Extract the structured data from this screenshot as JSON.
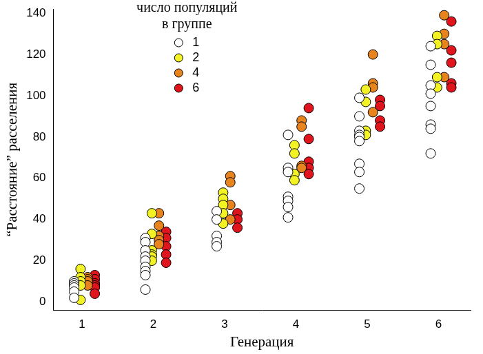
{
  "chart_data": {
    "type": "scatter",
    "x_label": "Генерация",
    "y_label": "“Расстояние” расселения",
    "legend_title": [
      "число популяций",
      "в группе"
    ],
    "legend": "top",
    "grid": false,
    "marker": "circle",
    "xlim": [
      0.6,
      6.45
    ],
    "xticks": [
      1,
      2,
      3,
      4,
      5,
      6
    ],
    "ylim": [
      -4,
      142
    ],
    "yticks": [
      0,
      20,
      40,
      60,
      80,
      100,
      120,
      140
    ],
    "series": [
      {
        "name": "1",
        "color": "#ffffff",
        "x": [
          0.89,
          0.89,
          0.89,
          0.89,
          0.89,
          0.89,
          1.89,
          1.89,
          1.89,
          1.89,
          1.89,
          1.89,
          1.89,
          1.89,
          1.89,
          2.89,
          2.89,
          2.89,
          2.89,
          2.89,
          3.89,
          3.89,
          3.89,
          3.89,
          3.89,
          3.89,
          3.89,
          4.89,
          4.89,
          4.89,
          4.89,
          4.89,
          4.89,
          4.89,
          4.89,
          4.89,
          5.89,
          5.89,
          5.89,
          5.89,
          5.89,
          5.89,
          5.89,
          5.89
        ],
        "values": [
          10,
          9,
          8,
          7,
          5,
          2,
          31,
          29,
          25,
          22,
          20,
          17,
          15,
          13,
          6,
          44,
          40,
          32,
          29,
          27,
          81,
          65,
          63,
          51,
          49,
          46,
          41,
          99,
          90,
          83,
          81,
          80,
          78,
          67,
          63,
          55,
          124,
          115,
          105,
          101,
          95,
          86,
          84,
          72
        ]
      },
      {
        "name": "2",
        "color": "#f2f224",
        "x": [
          0.98,
          0.98,
          0.98,
          0.98,
          0.98,
          1.98,
          1.98,
          1.98,
          1.98,
          1.98,
          1.98,
          2.98,
          2.98,
          2.98,
          2.98,
          2.98,
          3.98,
          3.98,
          3.98,
          3.98,
          4.98,
          4.98,
          4.98,
          4.98,
          5.98,
          5.98,
          5.98,
          5.98
        ],
        "values": [
          16,
          12,
          10,
          8,
          1,
          43,
          33,
          25,
          23,
          22,
          20,
          53,
          50,
          47,
          43,
          38,
          76,
          72,
          62,
          59,
          103,
          97,
          83,
          81,
          129,
          125,
          109,
          104
        ]
      },
      {
        "name": "4",
        "color": "#e8841e",
        "x": [
          1.08,
          1.08,
          1.08,
          1.08,
          2.08,
          2.08,
          2.08,
          2.08,
          2.08,
          3.08,
          3.08,
          3.08,
          3.08,
          4.08,
          4.08,
          4.08,
          4.08,
          5.08,
          5.08,
          5.08,
          5.08,
          6.08,
          6.08,
          6.08,
          6.08
        ],
        "values": [
          12,
          11,
          10,
          8,
          43,
          37,
          32,
          30,
          28,
          61,
          58,
          47,
          40,
          88,
          85,
          66,
          65,
          120,
          106,
          104,
          92,
          139,
          130,
          125,
          109
        ]
      },
      {
        "name": "6",
        "color": "#e0141c",
        "x": [
          1.18,
          1.18,
          1.18,
          1.18,
          1.18,
          1.18,
          2.18,
          2.18,
          2.18,
          2.18,
          2.18,
          3.18,
          3.18,
          3.18,
          4.18,
          4.18,
          4.18,
          4.18,
          4.18,
          5.18,
          5.18,
          5.18,
          5.18,
          6.18,
          6.18,
          6.18,
          6.18,
          6.18
        ],
        "values": [
          13,
          11,
          9,
          8,
          7,
          4,
          34,
          31,
          27,
          23,
          19,
          43,
          40,
          36,
          94,
          79,
          68,
          65,
          62,
          98,
          95,
          88,
          85,
          136,
          122,
          116,
          106,
          104
        ]
      }
    ]
  }
}
